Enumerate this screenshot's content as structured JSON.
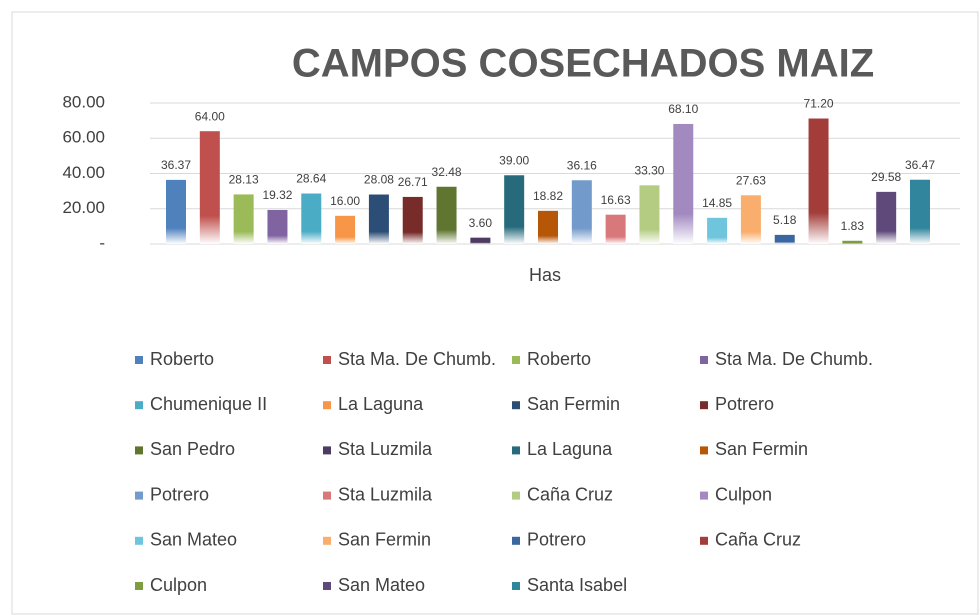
{
  "chart_data": {
    "type": "bar",
    "title": "CAMPOS COSECHADOS MAIZ",
    "x_label": "Has",
    "ylim": [
      0,
      80
    ],
    "yticks": [
      {
        "value": 0,
        "label": "-"
      },
      {
        "value": 20,
        "label": "20.00"
      },
      {
        "value": 40,
        "label": "40.00"
      },
      {
        "value": 60,
        "label": "60.00"
      },
      {
        "value": 80,
        "label": "80.00"
      }
    ],
    "grid": true,
    "series": [
      {
        "name": "Roberto",
        "color": "#4f81bd",
        "values": [
          36.37
        ],
        "value_labels": [
          "36.37"
        ]
      },
      {
        "name": "Sta Ma. De Chumb.",
        "color": "#c0504d",
        "values": [
          64.0
        ],
        "value_labels": [
          "64.00"
        ]
      },
      {
        "name": "Roberto",
        "color": "#9bbb59",
        "values": [
          28.13
        ],
        "value_labels": [
          "28.13"
        ]
      },
      {
        "name": "Sta Ma. De Chumb.",
        "color": "#8064a2",
        "values": [
          19.32
        ],
        "value_labels": [
          "19.32"
        ]
      },
      {
        "name": "Chumenique II",
        "color": "#4bacc6",
        "values": [
          28.64
        ],
        "value_labels": [
          "28.64"
        ]
      },
      {
        "name": "La Laguna",
        "color": "#f79646",
        "values": [
          16.0
        ],
        "value_labels": [
          "16.00"
        ]
      },
      {
        "name": "San Fermin",
        "color": "#2c4d75",
        "values": [
          28.08
        ],
        "value_labels": [
          "28.08"
        ]
      },
      {
        "name": "Potrero",
        "color": "#772c2a",
        "values": [
          26.71
        ],
        "value_labels": [
          "26.71"
        ]
      },
      {
        "name": "San Pedro",
        "color": "#5f7530",
        "values": [
          32.48
        ],
        "value_labels": [
          "32.48"
        ]
      },
      {
        "name": "Sta Luzmila",
        "color": "#4d3b62",
        "values": [
          3.6
        ],
        "value_labels": [
          "3.60"
        ]
      },
      {
        "name": "La Laguna",
        "color": "#276a7c",
        "values": [
          39.0
        ],
        "value_labels": [
          "39.00"
        ]
      },
      {
        "name": "San Fermin",
        "color": "#b65708",
        "values": [
          18.82
        ],
        "value_labels": [
          "18.82"
        ]
      },
      {
        "name": "Potrero",
        "color": "#729aca",
        "values": [
          36.16
        ],
        "value_labels": [
          "36.16"
        ]
      },
      {
        "name": "Sta Luzmila",
        "color": "#d9787a",
        "values": [
          16.63
        ],
        "value_labels": [
          "16.63"
        ]
      },
      {
        "name": "Caña Cruz",
        "color": "#b3cc82",
        "values": [
          33.3
        ],
        "value_labels": [
          "33.30"
        ]
      },
      {
        "name": "Culpon",
        "color": "#a28ac1",
        "values": [
          68.1
        ],
        "value_labels": [
          "68.10"
        ]
      },
      {
        "name": "San Mateo",
        "color": "#6fc5dc",
        "values": [
          14.85
        ],
        "value_labels": [
          "14.85"
        ]
      },
      {
        "name": "San Fermin",
        "color": "#f9ae6d",
        "values": [
          27.63
        ],
        "value_labels": [
          "27.63"
        ]
      },
      {
        "name": "Potrero",
        "color": "#3a67a0",
        "values": [
          5.18
        ],
        "value_labels": [
          "5.18"
        ]
      },
      {
        "name": "Caña Cruz",
        "color": "#a33d3a",
        "values": [
          71.2
        ],
        "value_labels": [
          "71.20"
        ]
      },
      {
        "name": "Culpon",
        "color": "#7e9c40",
        "values": [
          1.83
        ],
        "value_labels": [
          "1.83"
        ]
      },
      {
        "name": "San Mateo",
        "color": "#5f497a",
        "values": [
          29.58
        ],
        "value_labels": [
          "29.58"
        ]
      },
      {
        "name": "Santa Isabel",
        "color": "#31859c",
        "values": [
          36.47
        ],
        "value_labels": [
          "36.47"
        ]
      }
    ]
  }
}
